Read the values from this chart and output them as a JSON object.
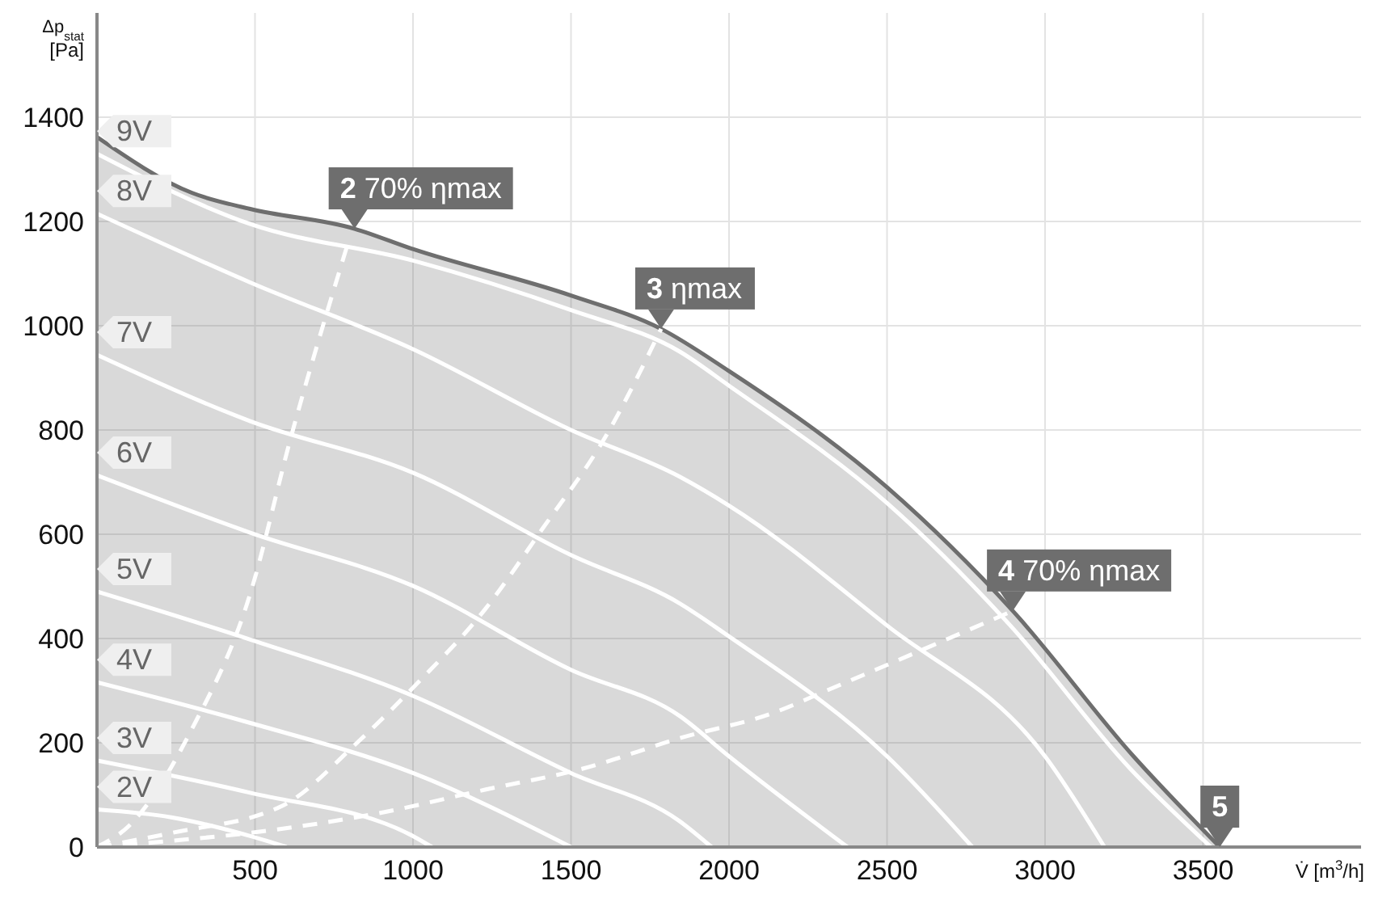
{
  "chart_data": {
    "type": "line",
    "xlabel": "V̇ [m$^{3}$/h]",
    "ylabel": "Δp$_{stat}$ [Pa]",
    "xlim": [
      0,
      4000
    ],
    "xticks": [
      500,
      1000,
      1500,
      2000,
      2500,
      3000,
      3500
    ],
    "ylim": [
      0,
      1600
    ],
    "yticks": [
      0,
      200,
      400,
      600,
      800,
      1000,
      1200,
      1400
    ],
    "grid": true,
    "marker": "none",
    "legend": "left",
    "series": [
      {
        "type": "area",
        "color": "#6e6e6e",
        "x": [
          0,
          300,
          485,
          815,
          1000,
          1500,
          1785,
          2000,
          2500,
          2898,
          3280,
          3553
        ],
        "values": [
          1362,
          1255,
          1224,
          1186,
          1147,
          1058,
          994,
          913,
          690,
          453,
          174,
          0
        ]
      },
      {
        "line_style": "dashed",
        "color": "#ffffff",
        "x": [
          0,
          235,
          483,
          900,
          1228,
          1535,
          1845,
          2143,
          2308,
          2898
        ],
        "values": [
          0,
          12,
          27,
          66,
          110,
          150,
          209,
          258,
          300,
          453
        ]
      },
      {
        "line_style": "dashed",
        "color": "#ffffff",
        "x": [
          0,
          235,
          589,
          823,
          1015,
          1228,
          1409,
          1611,
          1785
        ],
        "values": [
          0,
          27,
          80,
          200,
          315,
          456,
          610,
          789,
          994
        ]
      },
      {
        "line_style": "dashed",
        "color": "#ffffff",
        "x": [
          0,
          100,
          300,
          483,
          615,
          792
        ],
        "values": [
          0,
          40,
          226,
          482,
          789,
          1154
        ]
      },
      {
        "name": "2V",
        "color": "#ffffff",
        "x": [
          0,
          235,
          485,
          600
        ],
        "values": [
          72,
          57,
          21,
          0
        ]
      },
      {
        "name": "3V",
        "color": "#ffffff",
        "x": [
          0,
          485,
          1000,
          1060
        ],
        "values": [
          166,
          104,
          21,
          0
        ]
      },
      {
        "name": "4V",
        "color": "#ffffff",
        "x": [
          0,
          485,
          1000,
          1500
        ],
        "values": [
          316,
          238,
          142,
          0
        ]
      },
      {
        "name": "5V",
        "color": "#ffffff",
        "x": [
          0,
          485,
          1000,
          1500,
          1845,
          1945
        ],
        "values": [
          490,
          398,
          290,
          142,
          49,
          0
        ]
      },
      {
        "name": "6V",
        "color": "#ffffff",
        "x": [
          0,
          485,
          1000,
          1500,
          1845,
          2000,
          2375
        ],
        "values": [
          713,
          603,
          501,
          340,
          251,
          174,
          0
        ]
      },
      {
        "name": "7V",
        "color": "#ffffff",
        "x": [
          0,
          485,
          1000,
          1500,
          1845,
          2000,
          2500,
          2770
        ],
        "values": [
          944,
          817,
          718,
          560,
          467,
          404,
          174,
          0
        ]
      },
      {
        "name": "8V",
        "color": "#ffffff",
        "x": [
          0,
          485,
          1000,
          1500,
          1845,
          2000,
          2500,
          3000,
          3188
        ],
        "values": [
          1215,
          1083,
          955,
          800,
          710,
          655,
          425,
          174,
          0
        ]
      },
      {
        "name": "9V",
        "color": "#ffffff",
        "x": [
          0,
          485,
          1000,
          1500,
          1845,
          2000,
          2500,
          2890,
          3270,
          3525
        ],
        "values": [
          1330,
          1195,
          1125,
          1030,
          950,
          885,
          660,
          425,
          150,
          0
        ]
      }
    ],
    "annotations": [
      {
        "text": "2 70% ηmax",
        "x": 815,
        "y": 1186
      },
      {
        "text": "3 ηmax",
        "x": 1785,
        "y": 994
      },
      {
        "text": "4 70% ηmax",
        "x": 2898,
        "y": 453
      },
      {
        "text": "5",
        "x": 3553,
        "y": 0
      }
    ]
  }
}
